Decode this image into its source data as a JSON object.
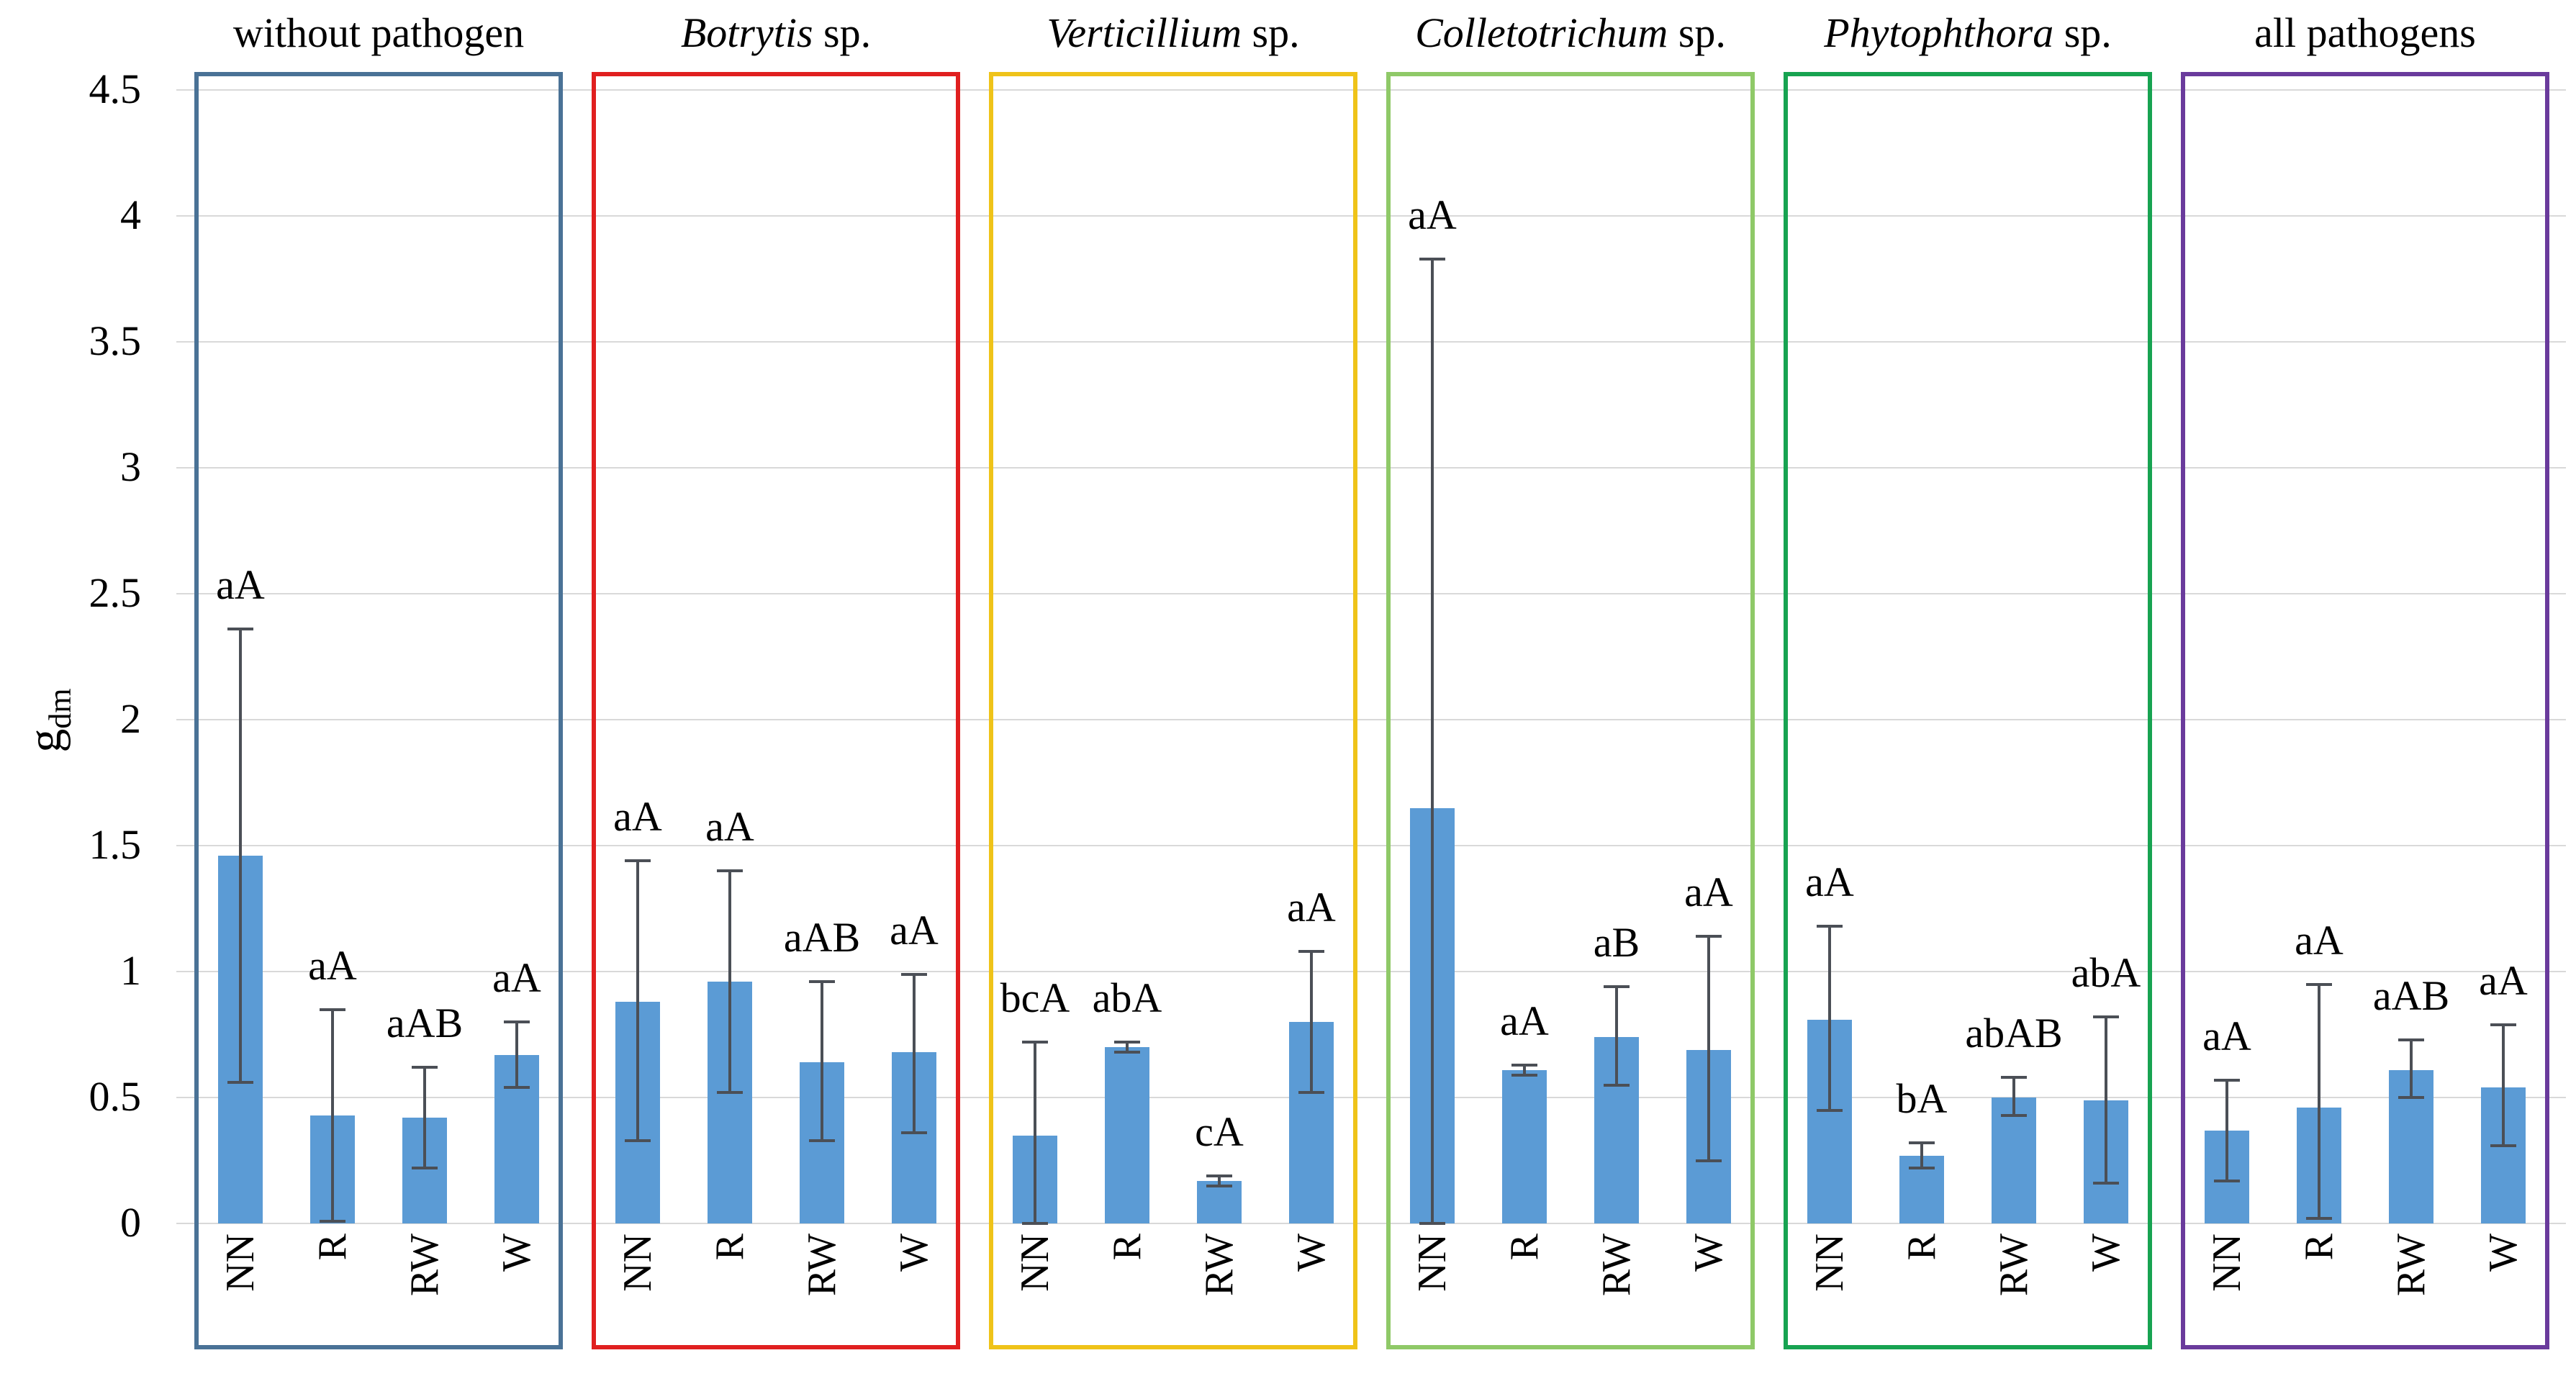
{
  "chart_data": {
    "type": "bar",
    "title": "",
    "xlabel": "",
    "ylabel_main": "g",
    "ylabel_sub": "dm",
    "ylim": [
      0,
      4.5
    ],
    "yticks": [
      "4.5",
      "4",
      "3.5",
      "3",
      "2.5",
      "2",
      "1.5",
      "1",
      "0.5",
      "0"
    ],
    "ytick_values": [
      4.5,
      4,
      3.5,
      3,
      2.5,
      2,
      1.5,
      1,
      0.5,
      0
    ],
    "grid": "horizontal",
    "legend": "none",
    "categories": [
      "NN",
      "R",
      "RW",
      "W"
    ],
    "bar_color": "#5b9bd5",
    "error_bar_color": "#4b4f56",
    "gridline_color": "#d9d9d9",
    "groups": [
      {
        "title_parts": [
          {
            "text": "without pathogen",
            "italic": false
          }
        ],
        "border_color": "#4a7296",
        "bars": [
          {
            "category": "NN",
            "value": 1.46,
            "err_low": 0.56,
            "err_high": 2.36,
            "letter": "aA"
          },
          {
            "category": "R",
            "value": 0.43,
            "err_low": 0.01,
            "err_high": 0.85,
            "letter": "aA"
          },
          {
            "category": "RW",
            "value": 0.42,
            "err_low": 0.22,
            "err_high": 0.62,
            "letter": "aAB"
          },
          {
            "category": "W",
            "value": 0.67,
            "err_low": 0.54,
            "err_high": 0.8,
            "letter": "aA"
          }
        ]
      },
      {
        "title_parts": [
          {
            "text": "Botrytis",
            "italic": true
          },
          {
            "text": " sp.",
            "italic": false
          }
        ],
        "border_color": "#e01f1f",
        "bars": [
          {
            "category": "NN",
            "value": 0.88,
            "err_low": 0.33,
            "err_high": 1.44,
            "letter": "aA"
          },
          {
            "category": "R",
            "value": 0.96,
            "err_low": 0.52,
            "err_high": 1.4,
            "letter": "aA"
          },
          {
            "category": "RW",
            "value": 0.64,
            "err_low": 0.33,
            "err_high": 0.96,
            "letter": "aAB"
          },
          {
            "category": "W",
            "value": 0.68,
            "err_low": 0.36,
            "err_high": 0.99,
            "letter": "aA"
          }
        ]
      },
      {
        "title_parts": [
          {
            "text": "Verticillium",
            "italic": true
          },
          {
            "text": " sp.",
            "italic": false
          }
        ],
        "border_color": "#efc319",
        "bars": [
          {
            "category": "NN",
            "value": 0.35,
            "err_low": 0.0,
            "err_high": 0.72,
            "letter": "bcA"
          },
          {
            "category": "R",
            "value": 0.7,
            "err_low": 0.68,
            "err_high": 0.72,
            "letter": "abA"
          },
          {
            "category": "RW",
            "value": 0.17,
            "err_low": 0.15,
            "err_high": 0.19,
            "letter": "cA"
          },
          {
            "category": "W",
            "value": 0.8,
            "err_low": 0.52,
            "err_high": 1.08,
            "letter": "aA"
          }
        ]
      },
      {
        "title_parts": [
          {
            "text": "Colletotrichum",
            "italic": true
          },
          {
            "text": " sp.",
            "italic": false
          }
        ],
        "border_color": "#8fc968",
        "bars": [
          {
            "category": "NN",
            "value": 1.65,
            "err_low": 0.0,
            "err_high": 3.83,
            "letter": "aA"
          },
          {
            "category": "R",
            "value": 0.61,
            "err_low": 0.59,
            "err_high": 0.63,
            "letter": "aA"
          },
          {
            "category": "RW",
            "value": 0.74,
            "err_low": 0.55,
            "err_high": 0.94,
            "letter": "aB"
          },
          {
            "category": "W",
            "value": 0.69,
            "err_low": 0.25,
            "err_high": 1.14,
            "letter": "aA"
          }
        ]
      },
      {
        "title_parts": [
          {
            "text": "Phytophthora",
            "italic": true
          },
          {
            "text": " sp.",
            "italic": false
          }
        ],
        "border_color": "#17a351",
        "bars": [
          {
            "category": "NN",
            "value": 0.81,
            "err_low": 0.45,
            "err_high": 1.18,
            "letter": "aA"
          },
          {
            "category": "R",
            "value": 0.27,
            "err_low": 0.22,
            "err_high": 0.32,
            "letter": "bA"
          },
          {
            "category": "RW",
            "value": 0.5,
            "err_low": 0.43,
            "err_high": 0.58,
            "letter": "abAB"
          },
          {
            "category": "W",
            "value": 0.49,
            "err_low": 0.16,
            "err_high": 0.82,
            "letter": "abA"
          }
        ]
      },
      {
        "title_parts": [
          {
            "text": "all pathogens",
            "italic": false
          }
        ],
        "border_color": "#6a3b9c",
        "bars": [
          {
            "category": "NN",
            "value": 0.37,
            "err_low": 0.17,
            "err_high": 0.57,
            "letter": "aA"
          },
          {
            "category": "R",
            "value": 0.46,
            "err_low": 0.02,
            "err_high": 0.95,
            "letter": "aA"
          },
          {
            "category": "RW",
            "value": 0.61,
            "err_low": 0.5,
            "err_high": 0.73,
            "letter": "aAB"
          },
          {
            "category": "W",
            "value": 0.54,
            "err_low": 0.31,
            "err_high": 0.79,
            "letter": "aA"
          }
        ]
      }
    ]
  }
}
